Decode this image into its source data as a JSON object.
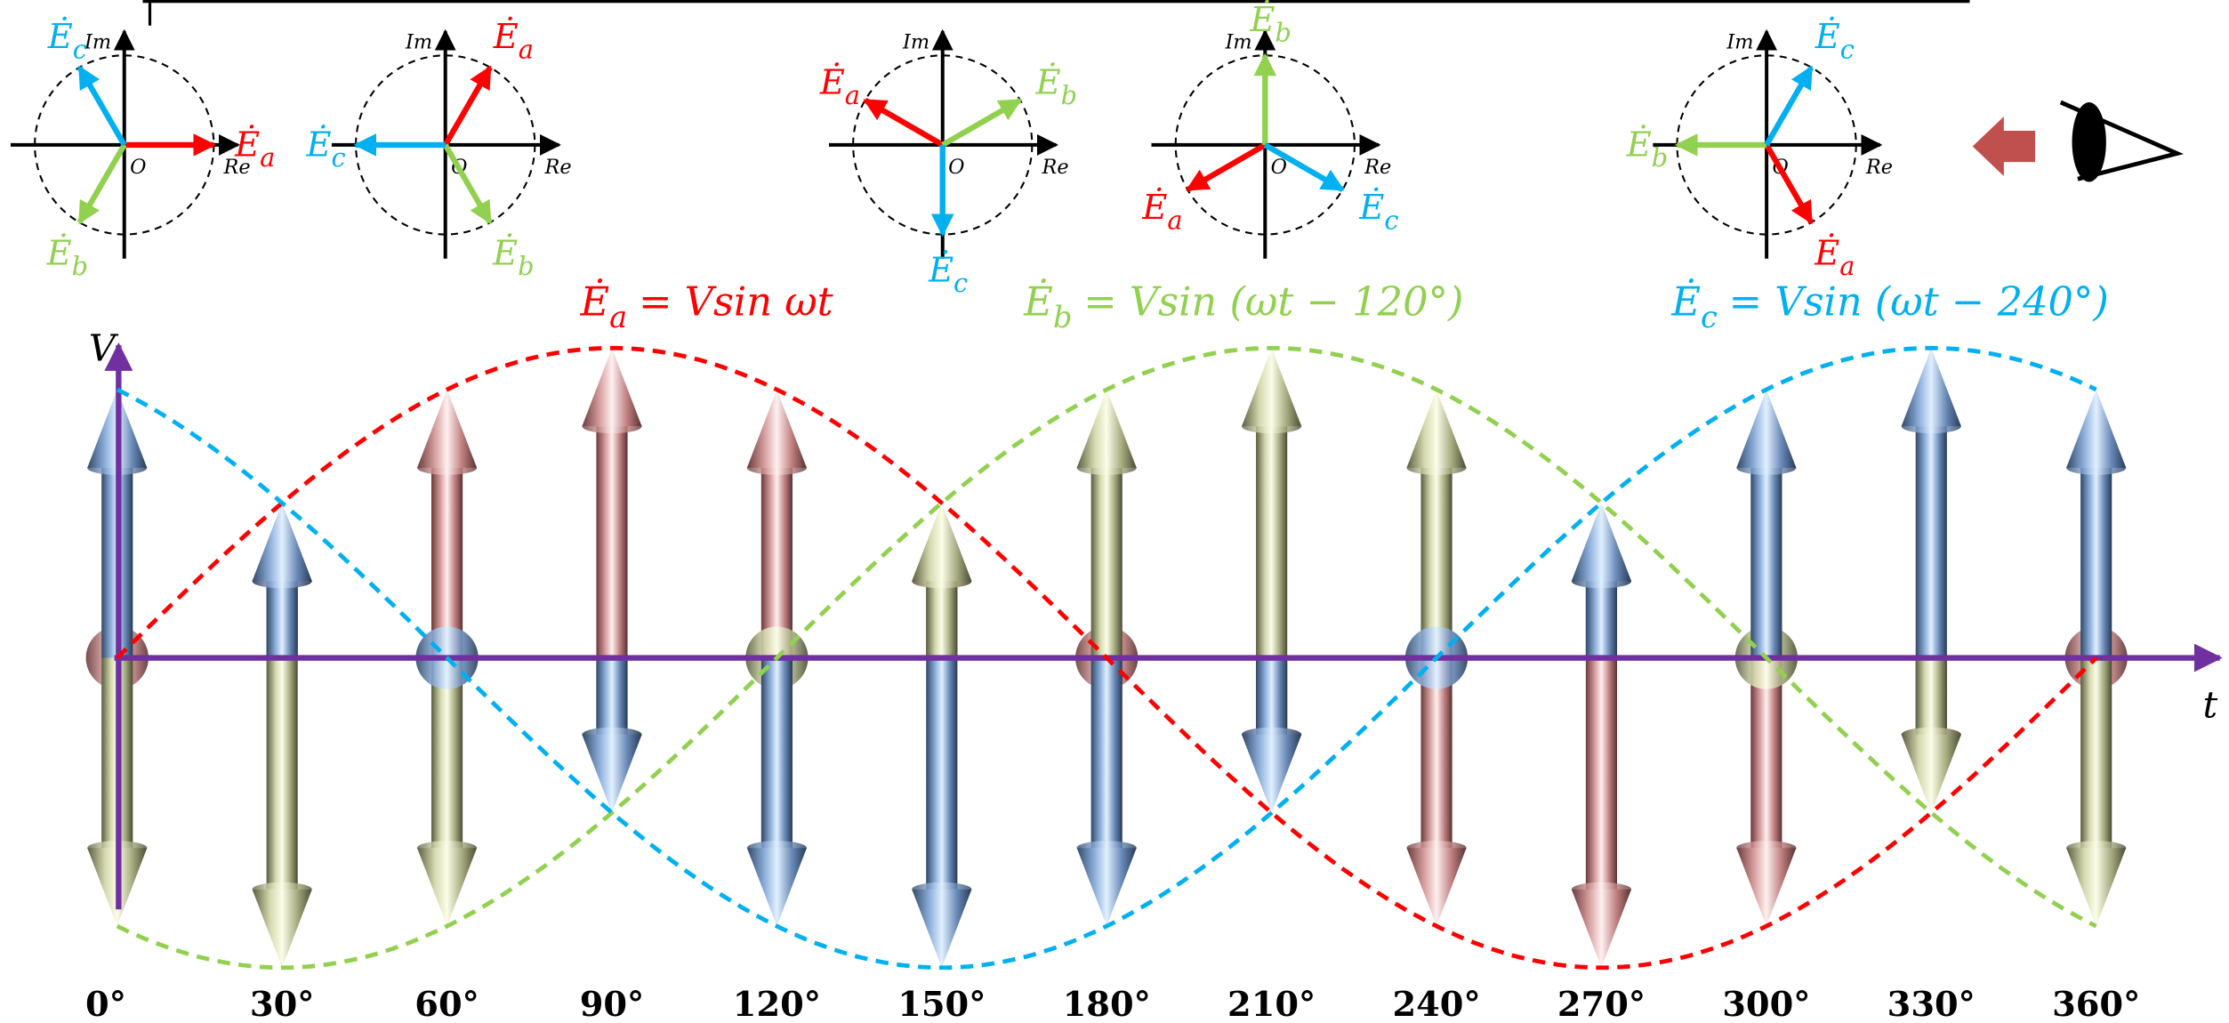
{
  "phasor_diagrams": [
    {
      "axis_labels": {
        "imaginary": "Im",
        "real": "Re",
        "origin": "O"
      },
      "phasors": [
        {
          "symbol": "Ė",
          "subscript": "a"
        },
        {
          "symbol": "Ė",
          "subscript": "b"
        },
        {
          "symbol": "Ė",
          "subscript": "c"
        }
      ]
    },
    {
      "axis_labels": {
        "imaginary": "Im",
        "real": "Re",
        "origin": "O"
      },
      "phasors": [
        {
          "symbol": "Ė",
          "subscript": "a"
        },
        {
          "symbol": "Ė",
          "subscript": "b"
        },
        {
          "symbol": "Ė",
          "subscript": "c"
        }
      ]
    },
    {
      "axis_labels": {
        "imaginary": "Im",
        "real": "Re",
        "origin": "O"
      },
      "phasors": [
        {
          "symbol": "Ė",
          "subscript": "a"
        },
        {
          "symbol": "Ė",
          "subscript": "b"
        },
        {
          "symbol": "Ė",
          "subscript": "c"
        }
      ]
    },
    {
      "axis_labels": {
        "imaginary": "Im",
        "real": "Re",
        "origin": "O"
      },
      "phasors": [
        {
          "symbol": "Ė",
          "subscript": "a"
        },
        {
          "symbol": "Ė",
          "subscript": "b"
        },
        {
          "symbol": "Ė",
          "subscript": "c"
        }
      ]
    },
    {
      "axis_labels": {
        "imaginary": "Im",
        "real": "Re",
        "origin": "O"
      },
      "phasors": [
        {
          "symbol": "Ė",
          "subscript": "a"
        },
        {
          "symbol": "Ė",
          "subscript": "b"
        },
        {
          "symbol": "Ė",
          "subscript": "c"
        }
      ]
    }
  ],
  "formulas": [
    {
      "symbol": "Ė",
      "subscript": "a",
      "expression": "= Vsin ωt"
    },
    {
      "symbol": "Ė",
      "subscript": "b",
      "expression": "= Vsin (ωt − 120°)"
    },
    {
      "symbol": "Ė",
      "subscript": "c",
      "expression": "= Vsin (ωt − 240°)"
    }
  ],
  "axis_labels": {
    "vertical": "V",
    "horizontal": "t"
  },
  "angle_labels": [
    "0°",
    "30°",
    "60°",
    "90°",
    "120°",
    "150°",
    "180°",
    "210°",
    "240°",
    "270°",
    "300°",
    "330°",
    "360°"
  ]
}
